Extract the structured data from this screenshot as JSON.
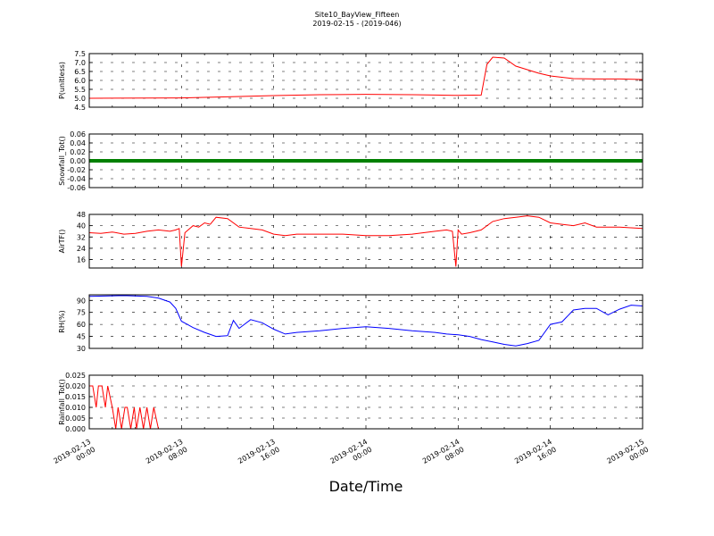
{
  "figure": {
    "title": "Site10_BayView_Fifteen",
    "subtitle": "2019-02-15 - (2019-046)",
    "xlabel": "Date/Time"
  },
  "colors": {
    "red": "#ff0000",
    "green": "#008000",
    "blue": "#0000ff"
  },
  "chart_data": [
    {
      "type": "line",
      "ylabel": "P(unitless)",
      "color": "#ff0000",
      "ylim": [
        4.5,
        7.5
      ],
      "yticks": [
        "4.5",
        "5.0",
        "5.5",
        "6.0",
        "6.5",
        "7.0",
        "7.5"
      ],
      "grid": true,
      "x_hours": [
        0,
        8,
        12,
        16,
        20,
        24,
        28,
        30,
        32,
        34,
        34.5,
        35,
        36,
        37,
        37.5,
        38,
        39,
        40,
        42,
        44,
        46,
        48
      ],
      "values": [
        5.0,
        5.02,
        5.08,
        5.15,
        5.2,
        5.22,
        5.2,
        5.18,
        5.16,
        5.18,
        6.9,
        7.3,
        7.25,
        6.8,
        6.7,
        6.6,
        6.4,
        6.25,
        6.1,
        6.08,
        6.08,
        6.05
      ]
    },
    {
      "type": "line",
      "ylabel": "Snowfall_Tot()",
      "color": "#008000",
      "ylim": [
        -0.06,
        0.06
      ],
      "yticks": [
        "-0.06",
        "-0.04",
        "-0.02",
        "0.00",
        "0.02",
        "0.04",
        "0.06"
      ],
      "grid": true,
      "x_hours": [
        0,
        48
      ],
      "values": [
        0,
        0
      ]
    },
    {
      "type": "line",
      "ylabel": "AirTF()",
      "color": "#ff0000",
      "ylim": [
        10,
        48
      ],
      "yticks": [
        "16",
        "24",
        "32",
        "40",
        "48"
      ],
      "grid": true,
      "x_hours": [
        0,
        1,
        2,
        3,
        4,
        5,
        6,
        7,
        7.5,
        7.8,
        8,
        8.3,
        9,
        9.5,
        10,
        10.5,
        11,
        12,
        13,
        14,
        15,
        16,
        17,
        18,
        20,
        22,
        24,
        26,
        28,
        30,
        31,
        31.5,
        31.8,
        32,
        32.3,
        33,
        34,
        35,
        36,
        37,
        38,
        39,
        40,
        41,
        42,
        43,
        44,
        46,
        48
      ],
      "values": [
        35,
        34.5,
        35.5,
        34,
        34.5,
        36,
        37,
        36,
        37,
        38,
        11,
        35,
        40,
        39,
        42,
        41,
        46,
        45,
        39,
        38,
        37,
        34,
        33,
        34,
        34,
        34,
        33,
        33,
        34,
        36,
        37,
        36,
        11,
        37,
        34,
        35,
        37,
        43,
        45,
        46,
        47,
        46,
        42,
        41,
        40,
        42,
        39,
        39,
        38
      ]
    },
    {
      "type": "line",
      "ylabel": "RH(%)",
      "color": "#0000ff",
      "ylim": [
        30,
        97
      ],
      "yticks": [
        "30",
        "45",
        "60",
        "75",
        "90"
      ],
      "grid": true,
      "x_hours": [
        0,
        3,
        5,
        6,
        7,
        7.5,
        8,
        8.5,
        9,
        10,
        11,
        12,
        12.5,
        13,
        14,
        15,
        16,
        17,
        18,
        20,
        22,
        24,
        26,
        28,
        30,
        31,
        32,
        33,
        34,
        35,
        36,
        37,
        38,
        39,
        40,
        41,
        42,
        43,
        44,
        45,
        46,
        47,
        48
      ],
      "values": [
        95,
        96,
        95,
        93,
        88,
        80,
        64,
        60,
        56,
        50,
        45,
        46,
        65,
        55,
        66,
        62,
        54,
        48,
        50,
        52,
        55,
        57,
        55,
        52,
        50,
        48,
        47,
        45,
        41,
        38,
        35,
        33,
        36,
        40,
        60,
        63,
        78,
        80,
        80,
        72,
        79,
        84,
        83
      ]
    },
    {
      "type": "line",
      "ylabel": "Rainfall_Tot()",
      "color": "#ff0000",
      "ylim": [
        0,
        0.025
      ],
      "yticks": [
        "0.000",
        "0.005",
        "0.010",
        "0.015",
        "0.020",
        "0.025"
      ],
      "grid": true,
      "x_hours": [
        0,
        0.3,
        0.6,
        0.8,
        1.1,
        1.4,
        1.6,
        2.0,
        2.3,
        2.5,
        2.8,
        3.1,
        3.3,
        3.6,
        3.9,
        4.1,
        4.4,
        4.7,
        5.0,
        5.3,
        5.6,
        6.0,
        48
      ],
      "values": [
        0.02,
        0.02,
        0.01,
        0.02,
        0.02,
        0.01,
        0.02,
        0.01,
        0.0,
        0.01,
        0.0,
        0.01,
        0.01,
        0.0,
        0.01,
        0.0,
        0.01,
        0.0,
        0.01,
        0.0,
        0.01,
        0.0,
        0.0
      ]
    }
  ],
  "xaxis": {
    "ticks": [
      {
        "d": "2019-02-13",
        "t": "00:00"
      },
      {
        "d": "2019-02-13",
        "t": "08:00"
      },
      {
        "d": "2019-02-13",
        "t": "16:00"
      },
      {
        "d": "2019-02-14",
        "t": "00:00"
      },
      {
        "d": "2019-02-14",
        "t": "08:00"
      },
      {
        "d": "2019-02-14",
        "t": "16:00"
      },
      {
        "d": "2019-02-15",
        "t": "00:00"
      }
    ]
  }
}
